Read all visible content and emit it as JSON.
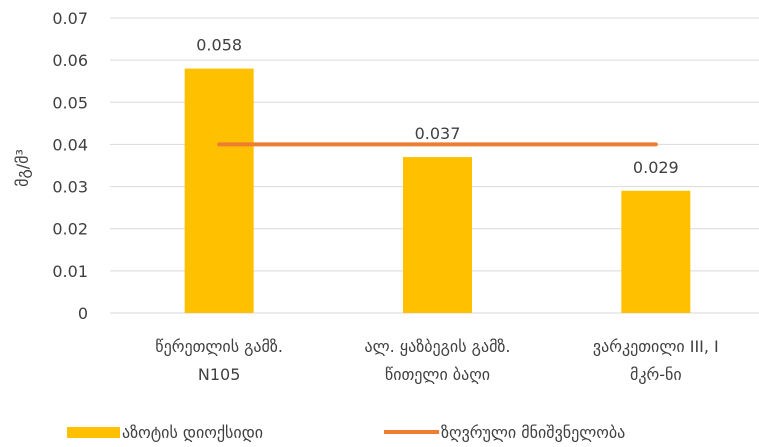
{
  "chart_data": {
    "type": "bar",
    "categories": [
      [
        "წერეთლის გამზ.",
        "N105"
      ],
      [
        "ალ. ყაზბეგის გამზ.",
        "წითელი ბაღი"
      ],
      [
        "ვარკეთილი III, I",
        "მკრ-ნი"
      ]
    ],
    "series": [
      {
        "name": "აზოტის დიოქსიდი",
        "type": "bar",
        "values": [
          0.058,
          0.037,
          0.029
        ],
        "labels": [
          "0.058",
          "0.037",
          "0.029"
        ],
        "color": "#FFC000"
      },
      {
        "name": "ზღვრული მნიშვნელობა",
        "type": "line",
        "values": [
          0.04,
          0.04,
          0.04
        ],
        "color": "#ED7D31"
      }
    ],
    "ylabel": "მგ/მ³",
    "ylim": [
      0,
      0.07
    ],
    "yticks": [
      "0",
      "0.01",
      "0.02",
      "0.03",
      "0.04",
      "0.05",
      "0.06",
      "0.07"
    ],
    "grid": true,
    "legend": "bottom"
  }
}
